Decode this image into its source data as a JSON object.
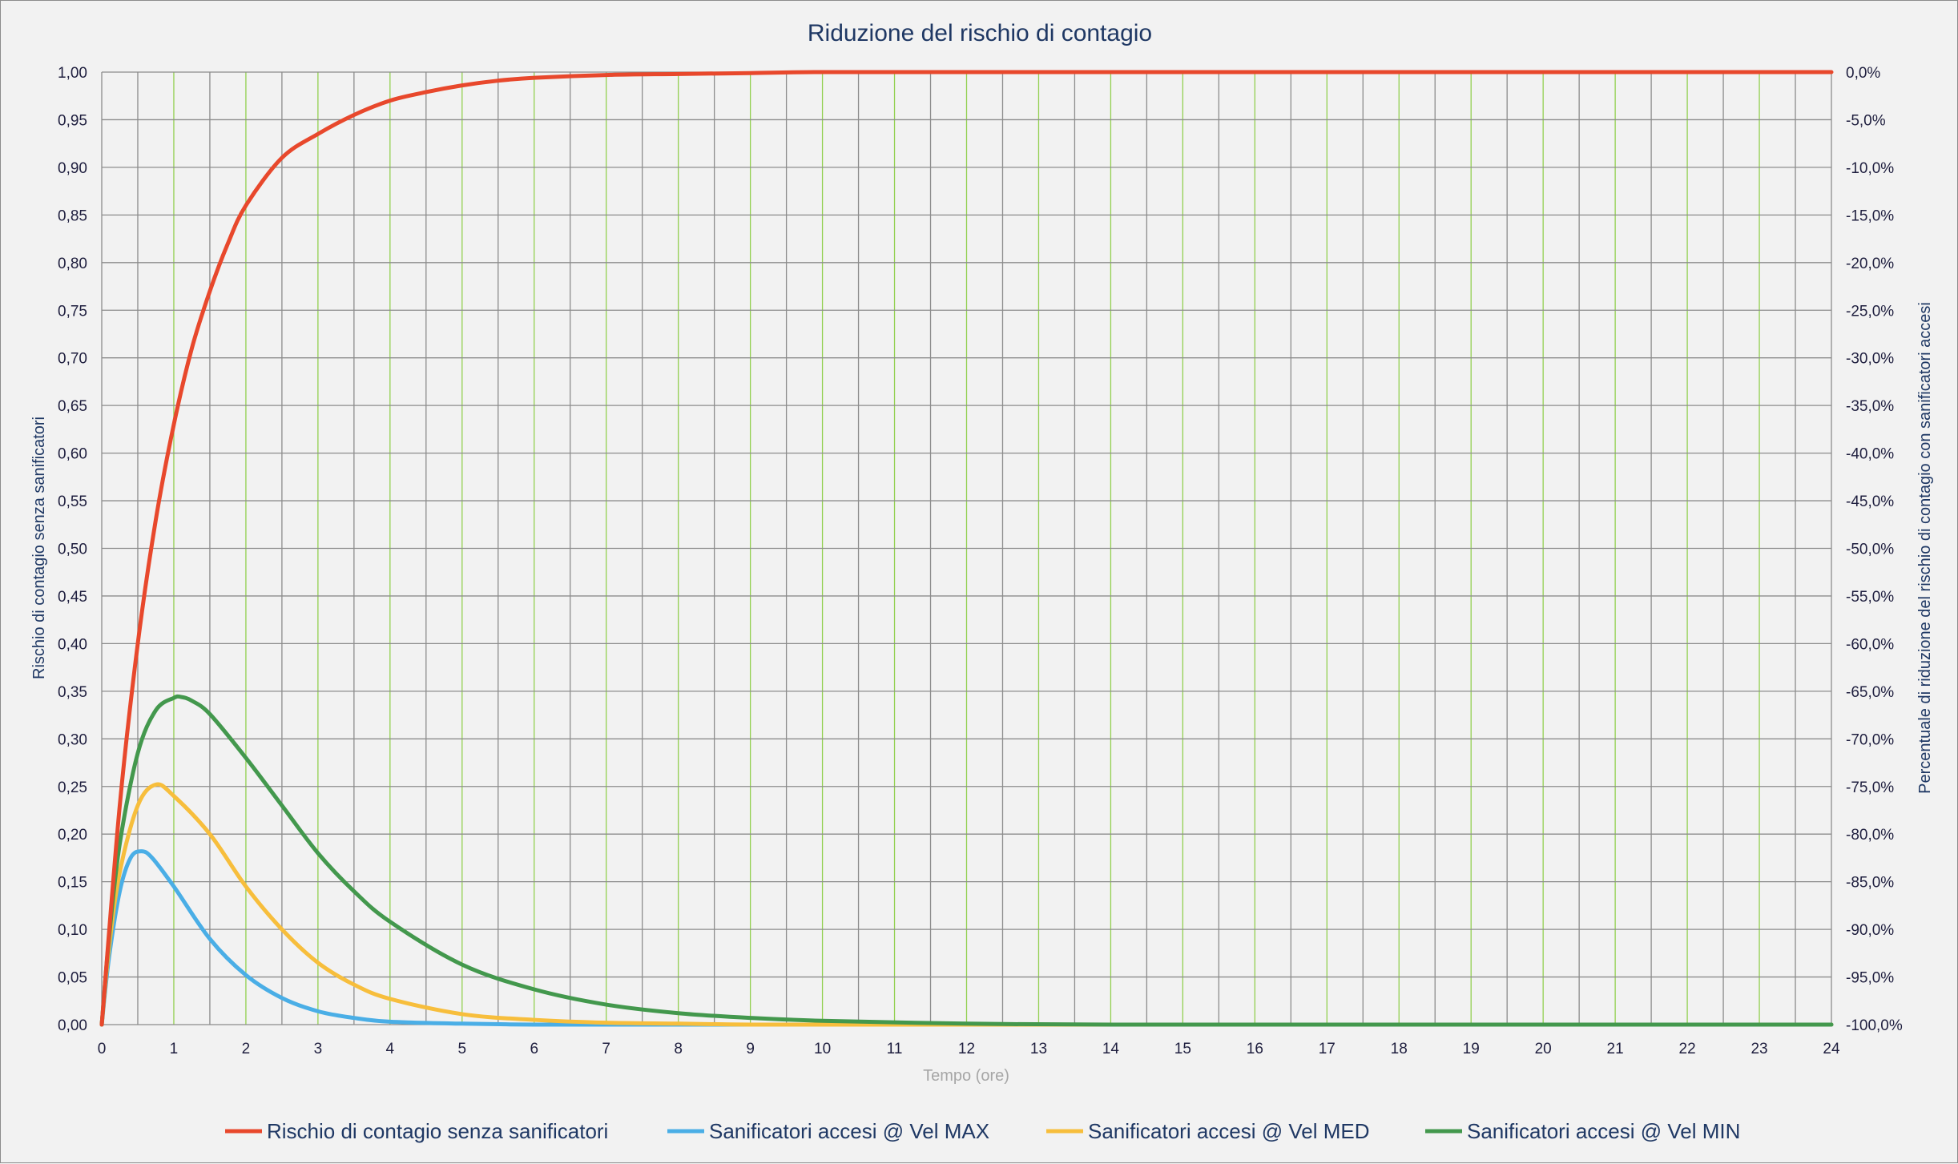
{
  "chart_data": {
    "type": "line",
    "title": "Riduzione del rischio di contagio",
    "xlabel": "Tempo (ore)",
    "ylabel": "Rischio di contagio senza sanificatori",
    "y2label": "Percentuale di riduzione del rischio di contagio con sanificatori accesi",
    "xlim": [
      0,
      24
    ],
    "ylim": [
      0,
      1
    ],
    "y2lim": [
      -100,
      0
    ],
    "x_ticks": [
      "0",
      "1",
      "2",
      "3",
      "4",
      "5",
      "6",
      "7",
      "8",
      "9",
      "10",
      "11",
      "12",
      "13",
      "14",
      "15",
      "16",
      "17",
      "18",
      "19",
      "20",
      "21",
      "22",
      "23",
      "24"
    ],
    "y_ticks": [
      "0,00",
      "0,05",
      "0,10",
      "0,15",
      "0,20",
      "0,25",
      "0,30",
      "0,35",
      "0,40",
      "0,45",
      "0,50",
      "0,55",
      "0,60",
      "0,65",
      "0,70",
      "0,75",
      "0,80",
      "0,85",
      "0,90",
      "0,95",
      "1,00"
    ],
    "y2_ticks": [
      "-100,0%",
      "-95,0%",
      "-90,0%",
      "-85,0%",
      "-80,0%",
      "-75,0%",
      "-70,0%",
      "-65,0%",
      "-60,0%",
      "-55,0%",
      "-50,0%",
      "-45,0%",
      "-40,0%",
      "-35,0%",
      "-30,0%",
      "-25,0%",
      "-20,0%",
      "-15,0%",
      "-10,0%",
      "-5,0%",
      "0,0%"
    ],
    "grid": true,
    "legend_position": "bottom",
    "series": [
      {
        "name": "Rischio di contagio senza sanificatori",
        "color": "#e8482c",
        "x": [
          0,
          0.25,
          0.5,
          0.75,
          1,
          1.25,
          1.5,
          1.75,
          2,
          2.5,
          3,
          3.5,
          4,
          4.5,
          5,
          5.5,
          6,
          7,
          8,
          9,
          10,
          12,
          14,
          16,
          18,
          20,
          22,
          24
        ],
        "y": [
          0,
          0.23,
          0.4,
          0.53,
          0.63,
          0.71,
          0.77,
          0.82,
          0.86,
          0.91,
          0.935,
          0.955,
          0.97,
          0.979,
          0.986,
          0.991,
          0.994,
          0.997,
          0.998,
          0.999,
          1.0,
          1.0,
          1.0,
          1.0,
          1.0,
          1.0,
          1.0,
          1.0
        ]
      },
      {
        "name": "Sanificatori accesi @ Vel MAX",
        "color": "#4aaee6",
        "x": [
          0,
          0.1,
          0.25,
          0.4,
          0.55,
          0.7,
          1,
          1.5,
          2,
          2.5,
          3,
          3.5,
          4,
          5,
          6,
          7,
          8,
          10,
          12,
          24
        ],
        "y": [
          0,
          0.07,
          0.14,
          0.175,
          0.182,
          0.175,
          0.145,
          0.09,
          0.052,
          0.028,
          0.014,
          0.007,
          0.003,
          0.001,
          0.0,
          0.0,
          0.0,
          0.0,
          0.0,
          0.0
        ]
      },
      {
        "name": "Sanificatori accesi @ Vel MED",
        "color": "#f7be3c",
        "x": [
          0,
          0.1,
          0.25,
          0.5,
          0.75,
          1,
          1.5,
          2,
          2.5,
          3,
          3.5,
          4,
          5,
          6,
          7,
          8,
          9,
          10,
          12,
          24
        ],
        "y": [
          0,
          0.08,
          0.16,
          0.23,
          0.252,
          0.24,
          0.2,
          0.145,
          0.1,
          0.065,
          0.042,
          0.027,
          0.011,
          0.005,
          0.002,
          0.001,
          0.0,
          0.0,
          0.0,
          0.0
        ]
      },
      {
        "name": "Sanificatori accesi @ Vel MIN",
        "color": "#43984d",
        "x": [
          0,
          0.1,
          0.25,
          0.5,
          0.75,
          1,
          1.1,
          1.25,
          1.5,
          2,
          2.5,
          3,
          3.5,
          4,
          5,
          6,
          7,
          8,
          9,
          10,
          12,
          14,
          16,
          24
        ],
        "y": [
          0,
          0.09,
          0.19,
          0.285,
          0.33,
          0.343,
          0.344,
          0.34,
          0.326,
          0.28,
          0.23,
          0.18,
          0.14,
          0.108,
          0.063,
          0.037,
          0.021,
          0.012,
          0.007,
          0.004,
          0.001,
          0.0,
          0.0,
          0.0
        ]
      }
    ]
  }
}
